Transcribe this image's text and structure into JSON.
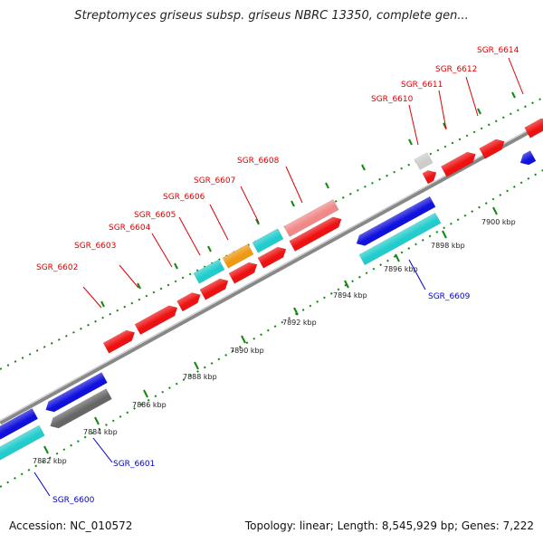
{
  "title": "Streptomyces griseus subsp. griseus NBRC 13350, complete gen...",
  "footer": {
    "accession": "Accession: NC_010572",
    "stats": "Topology: linear; Length: 8,545,929 bp; Genes: 7,222"
  },
  "colors": {
    "forward_gene": "#ee1111",
    "forward_gene_pale": "#f08888",
    "forward_gene_gray": "#cccccc",
    "reverse_gene": "#1111dd",
    "reverse_gene_gray": "#666666",
    "cyan_gene": "#22cccc",
    "orange_gene": "#ee9911",
    "forward_label": "#dd0000",
    "reverse_label": "#0000cc",
    "dna_track": "#999999",
    "tick": "#118811"
  },
  "axis_ticks": [
    "7882 kbp",
    "7884 kbp",
    "7886 kbp",
    "7888 kbp",
    "7890 kbp",
    "7892 kbp",
    "7894 kbp",
    "7896 kbp",
    "7898 kbp",
    "7900 kbp"
  ],
  "forward_labels": [
    "SGR_6602",
    "SGR_6603",
    "SGR_6604",
    "SGR_6605",
    "SGR_6606",
    "SGR_6607",
    "SGR_6608",
    "SGR_6610",
    "SGR_6611",
    "SGR_6612",
    "SGR_6614"
  ],
  "reverse_labels": [
    "SGR_6600",
    "SGR_6601",
    "SGR_6609"
  ]
}
